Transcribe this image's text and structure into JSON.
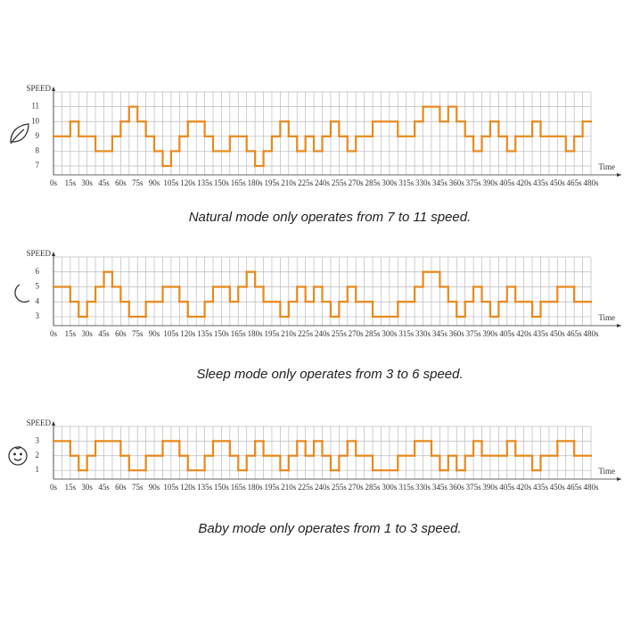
{
  "chart_data": [
    {
      "type": "step",
      "y_label": "SPEED",
      "x_label": "Time",
      "caption": "Natural mode only operates from 7 to 11 speed.",
      "color": "#e8891c",
      "grid": true,
      "xlim": [
        0,
        480
      ],
      "ylim": [
        6.4,
        12
      ],
      "yticks": [
        7,
        8,
        9,
        10,
        11
      ],
      "xticks": [
        {
          "value": 0,
          "label": "0s"
        },
        {
          "value": 15,
          "label": "15s"
        },
        {
          "value": 30,
          "label": "30s"
        },
        {
          "value": 45,
          "label": "45s"
        },
        {
          "value": 60,
          "label": "60s"
        },
        {
          "value": 75,
          "label": "75s"
        },
        {
          "value": 90,
          "label": "90s"
        },
        {
          "value": 105,
          "label": "105s"
        },
        {
          "value": 120,
          "label": "120s"
        },
        {
          "value": 135,
          "label": "135s"
        },
        {
          "value": 150,
          "label": "150s"
        },
        {
          "value": 165,
          "label": "165s"
        },
        {
          "value": 180,
          "label": "180s"
        },
        {
          "value": 195,
          "label": "195s"
        },
        {
          "value": 210,
          "label": "210s"
        },
        {
          "value": 225,
          "label": "225s"
        },
        {
          "value": 240,
          "label": "240s"
        },
        {
          "value": 255,
          "label": "255s"
        },
        {
          "value": 270,
          "label": "270s"
        },
        {
          "value": 285,
          "label": "285s"
        },
        {
          "value": 300,
          "label": "300s"
        },
        {
          "value": 315,
          "label": "315s"
        },
        {
          "value": 330,
          "label": "330s"
        },
        {
          "value": 345,
          "label": "345s"
        },
        {
          "value": 360,
          "label": "360s"
        },
        {
          "value": 375,
          "label": "375s"
        },
        {
          "value": 390,
          "label": "390s"
        },
        {
          "value": 405,
          "label": "405s"
        },
        {
          "value": 420,
          "label": "420s"
        },
        {
          "value": 435,
          "label": "435s"
        },
        {
          "value": 450,
          "label": "450s"
        },
        {
          "value": 465,
          "label": "465s"
        },
        {
          "value": 480,
          "label": "480s"
        }
      ],
      "x": [
        0,
        15,
        22.5,
        37.5,
        52.5,
        60,
        67.5,
        75,
        82.5,
        90,
        97.5,
        105,
        112.5,
        120,
        135,
        142.5,
        157.5,
        172.5,
        180,
        187.5,
        195,
        202.5,
        210,
        217.5,
        225,
        232.5,
        240,
        247.5,
        255,
        262.5,
        270,
        285,
        307.5,
        322.5,
        330,
        345,
        352.5,
        360,
        367.5,
        375,
        382.5,
        390,
        397.5,
        405,
        412.5,
        427.5,
        435,
        457.5,
        465,
        472.5
      ],
      "values": [
        9,
        10,
        9,
        8,
        9,
        10,
        11,
        10,
        9,
        8,
        7,
        8,
        9,
        10,
        9,
        8,
        9,
        8,
        7,
        8,
        9,
        10,
        9,
        8,
        9,
        8,
        9,
        10,
        9,
        8,
        9,
        10,
        9,
        10,
        11,
        10,
        11,
        10,
        9,
        8,
        9,
        10,
        9,
        8,
        9,
        10,
        9,
        8,
        9,
        10
      ]
    },
    {
      "type": "step",
      "y_label": "SPEED",
      "x_label": "Time",
      "caption": "Sleep mode only operates from 3 to 6 speed.",
      "color": "#e8891c",
      "grid": true,
      "xlim": [
        0,
        480
      ],
      "ylim": [
        2.4,
        7
      ],
      "yticks": [
        3,
        4,
        5,
        6
      ],
      "xticks": [
        {
          "value": 0,
          "label": "0s"
        },
        {
          "value": 15,
          "label": "15s"
        },
        {
          "value": 30,
          "label": "30s"
        },
        {
          "value": 45,
          "label": "45s"
        },
        {
          "value": 60,
          "label": "60s"
        },
        {
          "value": 75,
          "label": "75s"
        },
        {
          "value": 90,
          "label": "90s"
        },
        {
          "value": 105,
          "label": "105s"
        },
        {
          "value": 120,
          "label": "120s"
        },
        {
          "value": 135,
          "label": "135s"
        },
        {
          "value": 150,
          "label": "150s"
        },
        {
          "value": 165,
          "label": "165s"
        },
        {
          "value": 180,
          "label": "180s"
        },
        {
          "value": 195,
          "label": "195s"
        },
        {
          "value": 210,
          "label": "210s"
        },
        {
          "value": 225,
          "label": "225s"
        },
        {
          "value": 240,
          "label": "240s"
        },
        {
          "value": 255,
          "label": "255s"
        },
        {
          "value": 270,
          "label": "270s"
        },
        {
          "value": 285,
          "label": "285s"
        },
        {
          "value": 300,
          "label": "300s"
        },
        {
          "value": 315,
          "label": "315s"
        },
        {
          "value": 330,
          "label": "330s"
        },
        {
          "value": 345,
          "label": "345s"
        },
        {
          "value": 360,
          "label": "360s"
        },
        {
          "value": 375,
          "label": "375s"
        },
        {
          "value": 390,
          "label": "390s"
        },
        {
          "value": 405,
          "label": "405s"
        },
        {
          "value": 420,
          "label": "420s"
        },
        {
          "value": 435,
          "label": "435s"
        },
        {
          "value": 450,
          "label": "450s"
        },
        {
          "value": 465,
          "label": "465s"
        },
        {
          "value": 480,
          "label": "480s"
        }
      ],
      "x": [
        0,
        15,
        22.5,
        30,
        37.5,
        45,
        52.5,
        60,
        67.5,
        82.5,
        97.5,
        112.5,
        120,
        135,
        142.5,
        157.5,
        165,
        172.5,
        180,
        187.5,
        202.5,
        210,
        217.5,
        225,
        232.5,
        240,
        247.5,
        255,
        262.5,
        270,
        285,
        307.5,
        322.5,
        330,
        345,
        352.5,
        360,
        367.5,
        375,
        382.5,
        390,
        397.5,
        405,
        412.5,
        427.5,
        435,
        450,
        465
      ],
      "values": [
        5,
        4,
        3,
        4,
        5,
        6,
        5,
        4,
        3,
        4,
        5,
        4,
        3,
        4,
        5,
        4,
        5,
        6,
        5,
        4,
        3,
        4,
        5,
        4,
        5,
        4,
        3,
        4,
        5,
        4,
        3,
        4,
        5,
        6,
        5,
        4,
        3,
        4,
        5,
        4,
        3,
        4,
        5,
        4,
        3,
        4,
        5,
        4
      ]
    },
    {
      "type": "step",
      "y_label": "SPEED",
      "x_label": "Time",
      "caption": "Baby mode only operates from 1 to 3 speed.",
      "color": "#e8891c",
      "grid": true,
      "xlim": [
        0,
        480
      ],
      "ylim": [
        0.4,
        4
      ],
      "yticks": [
        1,
        2,
        3
      ],
      "xticks": [
        {
          "value": 0,
          "label": "0s"
        },
        {
          "value": 15,
          "label": "15s"
        },
        {
          "value": 30,
          "label": "30s"
        },
        {
          "value": 45,
          "label": "45s"
        },
        {
          "value": 60,
          "label": "60s"
        },
        {
          "value": 75,
          "label": "75s"
        },
        {
          "value": 90,
          "label": "90s"
        },
        {
          "value": 105,
          "label": "105s"
        },
        {
          "value": 120,
          "label": "120s"
        },
        {
          "value": 135,
          "label": "135s"
        },
        {
          "value": 150,
          "label": "150s"
        },
        {
          "value": 165,
          "label": "165s"
        },
        {
          "value": 180,
          "label": "180s"
        },
        {
          "value": 195,
          "label": "195s"
        },
        {
          "value": 210,
          "label": "210s"
        },
        {
          "value": 225,
          "label": "225s"
        },
        {
          "value": 240,
          "label": "240s"
        },
        {
          "value": 255,
          "label": "255s"
        },
        {
          "value": 270,
          "label": "270s"
        },
        {
          "value": 285,
          "label": "285s"
        },
        {
          "value": 300,
          "label": "300s"
        },
        {
          "value": 315,
          "label": "315s"
        },
        {
          "value": 330,
          "label": "330s"
        },
        {
          "value": 345,
          "label": "345s"
        },
        {
          "value": 360,
          "label": "360s"
        },
        {
          "value": 375,
          "label": "375s"
        },
        {
          "value": 390,
          "label": "390s"
        },
        {
          "value": 405,
          "label": "405s"
        },
        {
          "value": 420,
          "label": "420s"
        },
        {
          "value": 435,
          "label": "435s"
        },
        {
          "value": 450,
          "label": "450s"
        },
        {
          "value": 465,
          "label": "465s"
        },
        {
          "value": 480,
          "label": "480s"
        }
      ],
      "x": [
        0,
        15,
        22.5,
        30,
        37.5,
        60,
        67.5,
        82.5,
        97.5,
        112.5,
        120,
        135,
        142.5,
        157.5,
        165,
        172.5,
        180,
        187.5,
        202.5,
        210,
        217.5,
        225,
        232.5,
        240,
        247.5,
        255,
        262.5,
        270,
        285,
        307.5,
        322.5,
        337.5,
        345,
        352.5,
        360,
        367.5,
        375,
        382.5,
        405,
        412.5,
        427.5,
        435,
        450,
        465
      ],
      "values": [
        3,
        2,
        1,
        2,
        3,
        2,
        1,
        2,
        3,
        2,
        1,
        2,
        3,
        2,
        1,
        2,
        3,
        2,
        1,
        2,
        3,
        2,
        3,
        2,
        1,
        2,
        3,
        2,
        1,
        2,
        3,
        2,
        1,
        2,
        1,
        2,
        3,
        2,
        3,
        2,
        1,
        2,
        3,
        2
      ]
    }
  ]
}
